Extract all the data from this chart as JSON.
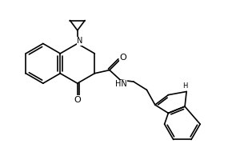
{
  "background_color": "#ffffff",
  "line_color": "#000000",
  "line_width": 1.2,
  "font_size": 7,
  "figsize": [
    3.0,
    2.0
  ],
  "dpi": 100,
  "atoms": {
    "N_label": "N",
    "O_ketone": "O",
    "O_amide": "O",
    "NH_amide": "HN",
    "NH_indole": "H"
  }
}
